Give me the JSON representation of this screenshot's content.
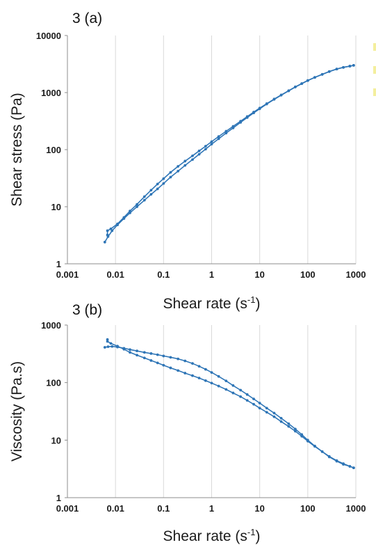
{
  "chart_data": [
    {
      "type": "line",
      "panel_label": "3 (a)",
      "xlabel": "Shear rate (s",
      "xlabel_sup": "-1",
      "xlabel_end": ")",
      "ylabel": "Shear stress (Pa)",
      "xscale": "log",
      "yscale": "log",
      "xlim": [
        0.001,
        1000
      ],
      "ylim": [
        1,
        10000
      ],
      "xticks": [
        0.001,
        0.01,
        0.1,
        1,
        10,
        100,
        1000
      ],
      "xtick_labels": [
        "0.001",
        "0.01",
        "0.1",
        "1",
        "10",
        "100",
        "1000"
      ],
      "yticks": [
        1,
        10,
        100,
        1000,
        10000
      ],
      "ytick_labels": [
        "1",
        "10",
        "100",
        "1000",
        "10000"
      ],
      "grid": "vertical",
      "color": "#2e75b6",
      "series": [
        {
          "x": [
            0.006,
            0.007,
            0.0085,
            0.011,
            0.015,
            0.02,
            0.028,
            0.04,
            0.055,
            0.075,
            0.1,
            0.14,
            0.2,
            0.28,
            0.4,
            0.55,
            0.75,
            1,
            1.4,
            2,
            2.8,
            4,
            5.5,
            7.5,
            10,
            14,
            20,
            28,
            40,
            55,
            75,
            100,
            140,
            200,
            280,
            400,
            550,
            750,
            900
          ],
          "y": [
            2.4,
            3.0,
            3.8,
            4.8,
            6.2,
            7.8,
            10,
            13,
            16.5,
            20.5,
            25.5,
            33,
            42,
            53,
            67,
            83,
            102,
            125,
            155,
            195,
            240,
            300,
            365,
            440,
            520,
            630,
            760,
            900,
            1070,
            1250,
            1430,
            1620,
            1840,
            2080,
            2330,
            2580,
            2760,
            2900,
            3000
          ]
        },
        {
          "x": [
            0.0068,
            0.0068,
            0.008,
            0.011,
            0.015,
            0.02,
            0.028,
            0.04,
            0.055,
            0.075,
            0.1,
            0.14,
            0.2,
            0.28,
            0.4,
            0.55,
            0.75,
            1,
            1.4,
            2,
            2.8,
            4,
            5.5,
            7.5,
            10,
            14,
            20,
            28,
            40,
            55,
            75,
            100,
            140,
            200,
            280,
            400,
            550,
            750,
            900
          ],
          "y": [
            3.2,
            3.8,
            4.1,
            5.0,
            6.5,
            8.4,
            11,
            15,
            19.5,
            25,
            31,
            40,
            51,
            63,
            78,
            95,
            115,
            138,
            170,
            210,
            256,
            315,
            380,
            455,
            535,
            640,
            770,
            910,
            1080,
            1260,
            1440,
            1630,
            1850,
            2090,
            2340,
            2590,
            2770,
            2910,
            3000
          ]
        }
      ]
    },
    {
      "type": "line",
      "panel_label": "3 (b)",
      "xlabel": "Shear rate (s",
      "xlabel_sup": "-1",
      "xlabel_end": ")",
      "ylabel": "Viscosity (Pa.s)",
      "xscale": "log",
      "yscale": "log",
      "xlim": [
        0.001,
        1000
      ],
      "ylim": [
        1,
        1000
      ],
      "xticks": [
        0.001,
        0.01,
        0.1,
        1,
        10,
        100,
        1000
      ],
      "xtick_labels": [
        "0.001",
        "0.01",
        "0.1",
        "1",
        "10",
        "100",
        "1000"
      ],
      "yticks": [
        1,
        10,
        100,
        1000
      ],
      "ytick_labels": [
        "1",
        "10",
        "100",
        "1000"
      ],
      "grid": "vertical",
      "color": "#2e75b6",
      "series": [
        {
          "x": [
            0.006,
            0.007,
            0.0085,
            0.011,
            0.015,
            0.02,
            0.028,
            0.04,
            0.055,
            0.075,
            0.1,
            0.14,
            0.2,
            0.28,
            0.4,
            0.55,
            0.75,
            1,
            1.4,
            2,
            2.8,
            4,
            5.5,
            7.5,
            10,
            14,
            20,
            28,
            40,
            55,
            75,
            100,
            140,
            200,
            280,
            400,
            550,
            750,
            900
          ],
          "y": [
            410,
            420,
            425,
            415,
            395,
            375,
            355,
            335,
            320,
            305,
            290,
            275,
            258,
            238,
            215,
            192,
            170,
            150,
            128,
            107,
            89,
            74,
            62,
            52,
            44,
            36,
            29.5,
            24,
            19.3,
            15.6,
            12.5,
            10,
            7.9,
            6.3,
            5.1,
            4.3,
            3.8,
            3.5,
            3.3
          ]
        },
        {
          "x": [
            0.0068,
            0.0068,
            0.008,
            0.011,
            0.015,
            0.02,
            0.028,
            0.04,
            0.055,
            0.075,
            0.1,
            0.14,
            0.2,
            0.28,
            0.4,
            0.55,
            0.75,
            1,
            1.4,
            2,
            2.8,
            4,
            5.5,
            7.5,
            10,
            14,
            20,
            28,
            40,
            55,
            75,
            100,
            140,
            200,
            280,
            400,
            550,
            750,
            900
          ],
          "y": [
            560,
            520,
            480,
            430,
            380,
            335,
            300,
            268,
            242,
            220,
            200,
            180,
            162,
            146,
            132,
            120,
            108,
            98,
            87,
            76,
            66,
            57,
            49,
            42,
            36,
            30.5,
            25.5,
            21,
            17.3,
            14.3,
            11.7,
            9.6,
            7.8,
            6.3,
            5.2,
            4.4,
            3.9,
            3.5,
            3.3
          ]
        }
      ]
    }
  ]
}
